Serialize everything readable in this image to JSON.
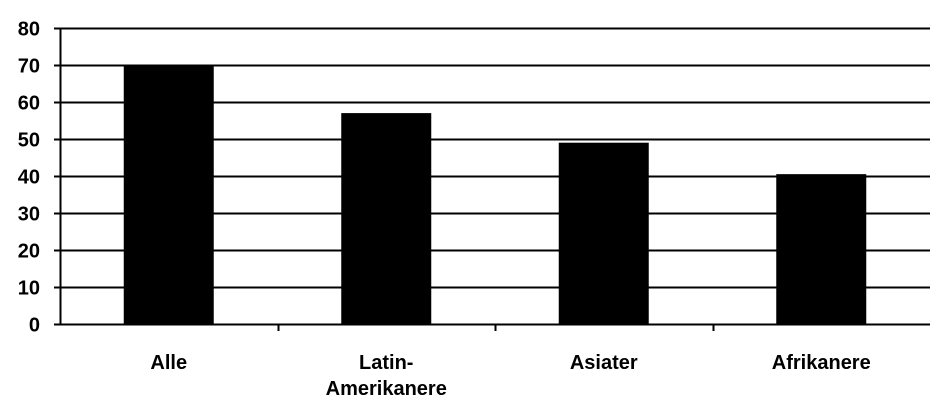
{
  "chart_data": {
    "type": "bar",
    "categories": [
      "Alle",
      "Latin-\nAmerikanere",
      "Asiater",
      "Afrikanere"
    ],
    "values": [
      70,
      57,
      49,
      40.5
    ],
    "ylim": [
      0,
      80
    ],
    "yticks": [
      0,
      10,
      20,
      30,
      40,
      50,
      60,
      70,
      80
    ],
    "grid": true,
    "bar_color": "#000000",
    "grid_color": "#000000",
    "background": "#ffffff"
  }
}
